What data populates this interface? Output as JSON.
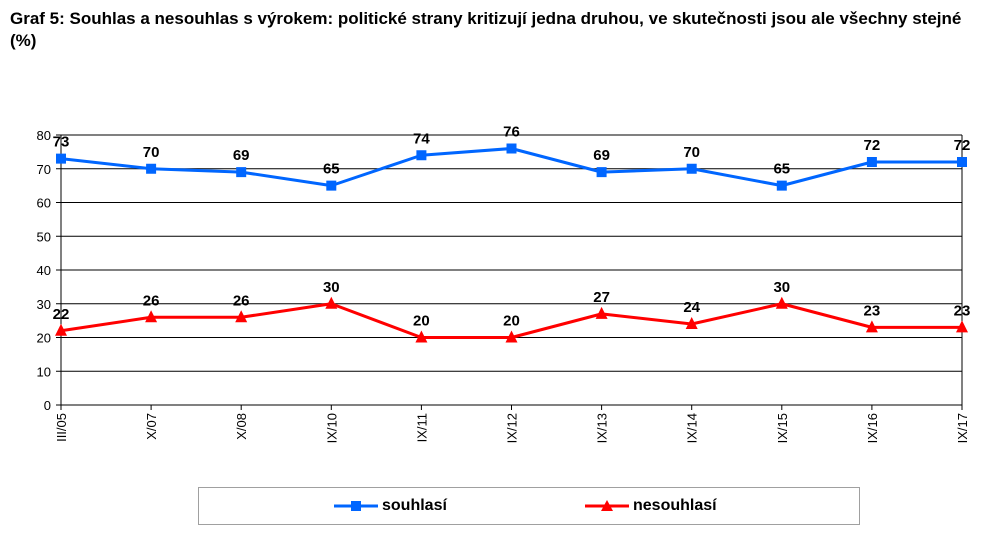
{
  "title": "Graf 5: Souhlas a nesouhlas s výrokem: politické strany kritizují jedna druhou, ve skutečnosti jsou ale všechny stejné (%)",
  "chart_data": {
    "type": "line",
    "title": "Graf 5: Souhlas a nesouhlas s výrokem: politické strany kritizují jedna druhou, ve skutečnosti jsou ale všechny stejné (%)",
    "categories": [
      "III/05",
      "X/07",
      "X/08",
      "IX/10",
      "IX/11",
      "IX/12",
      "IX/13",
      "IX/14",
      "IX/15",
      "IX/16",
      "IX/17"
    ],
    "ylim": [
      0,
      80
    ],
    "yticks": [
      0,
      10,
      20,
      30,
      40,
      50,
      60,
      70,
      80
    ],
    "grid": true,
    "legend": "bottom",
    "series": [
      {
        "name": "souhlasí",
        "color": "#0066ff",
        "marker": "square",
        "values": [
          73,
          70,
          69,
          65,
          74,
          76,
          69,
          70,
          65,
          72,
          72
        ]
      },
      {
        "name": "nesouhlasí",
        "color": "#ff0000",
        "marker": "triangle",
        "values": [
          22,
          26,
          26,
          30,
          20,
          20,
          27,
          24,
          30,
          23,
          23
        ]
      }
    ]
  }
}
